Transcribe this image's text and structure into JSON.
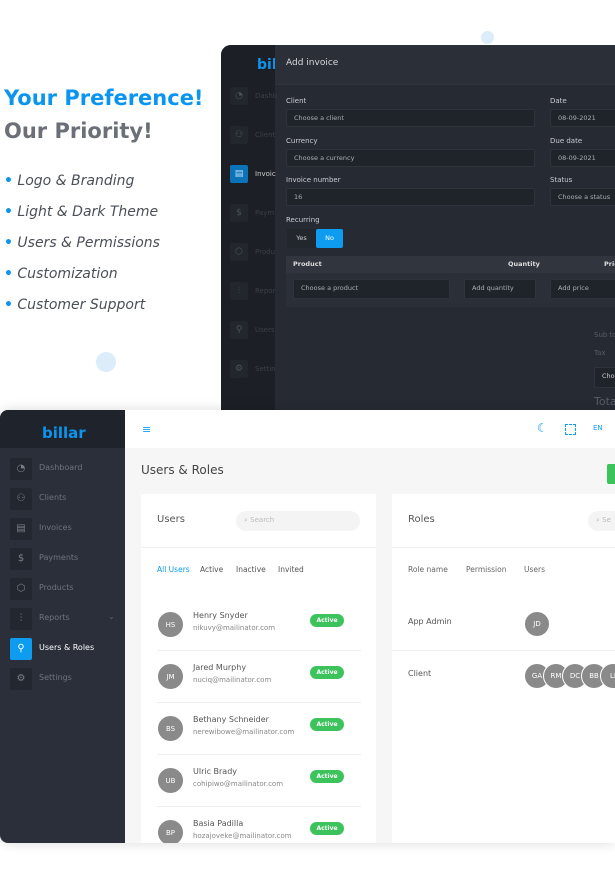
{
  "hero": {
    "line1": "Your Preference!",
    "line2": "Our Priority!",
    "features": [
      "Logo & Branding",
      "Light & Dark Theme",
      "Users & Permissions",
      "Customization",
      "Customer Support"
    ]
  },
  "dark_app": {
    "logo": "bil",
    "title": "Add invoice",
    "sidebar": [
      "Dashb",
      "Client",
      "Invoic",
      "Paym",
      "Produ",
      "Repor",
      "Users",
      "Settin"
    ],
    "client_label": "Client",
    "client_ph": "Choose a client",
    "date_label": "Date",
    "date": "08-09-2021",
    "currency_label": "Currency",
    "currency_ph": "Choose a currency",
    "due_label": "Due date",
    "due": "08-09-2021",
    "number_label": "Invoice number",
    "number": "16",
    "status_label": "Status",
    "status_ph": "Choose a status",
    "recurring_label": "Recurring",
    "yes": "Yes",
    "no": "No",
    "col_product": "Product",
    "col_quantity": "Quantity",
    "col_price": "Pric",
    "product_ph": "Choose a product",
    "qty_ph": "Add quantity",
    "price_ph": "Add price",
    "subtotal": "Sub to",
    "tax": "Tax",
    "choose": "Cho",
    "total": "Tota"
  },
  "app": {
    "logo": "billar",
    "language": "EN",
    "page_title": "Users & Roles",
    "sidebar": [
      {
        "label": "Dashboard",
        "icon": "pie-chart-icon"
      },
      {
        "label": "Clients",
        "icon": "users-icon"
      },
      {
        "label": "Invoices",
        "icon": "document-icon"
      },
      {
        "label": "Payments",
        "icon": "dollar-icon"
      },
      {
        "label": "Products",
        "icon": "box-icon"
      },
      {
        "label": "Reports",
        "icon": "bar-chart-icon"
      },
      {
        "label": "Users & Roles",
        "icon": "user-check-icon"
      },
      {
        "label": "Settings",
        "icon": "gear-icon"
      }
    ],
    "users": {
      "title": "Users",
      "search_ph": "Search",
      "tabs": [
        "All Users",
        "Active",
        "Inactive",
        "Invited"
      ],
      "rows": [
        {
          "initials": "HS",
          "name": "Henry Snyder",
          "email": "nikuvy@mailinator.com",
          "status": "Active"
        },
        {
          "initials": "JM",
          "name": "Jared Murphy",
          "email": "nuciq@mailinator.com",
          "status": "Active"
        },
        {
          "initials": "BS",
          "name": "Bethany Schneider",
          "email": "nerewibowe@mailinator.com",
          "status": "Active"
        },
        {
          "initials": "UB",
          "name": "Ulric Brady",
          "email": "cohipiwo@mailinator.com",
          "status": "Active"
        },
        {
          "initials": "BP",
          "name": "Basia Padilla",
          "email": "hozajoveke@mailinator.com",
          "status": "Active"
        }
      ]
    },
    "roles": {
      "title": "Roles",
      "search_ph": "Se",
      "headers": [
        "Role name",
        "Permission",
        "Users"
      ],
      "rows": [
        {
          "name": "App Admin",
          "users": [
            "JD"
          ]
        },
        {
          "name": "Client",
          "users": [
            "GA",
            "RM",
            "DC",
            "BB",
            "LI"
          ]
        }
      ]
    },
    "colors": {
      "accent": "#0d9cf0",
      "success": "#3cc35b",
      "sidebar": "#2a2f3a"
    }
  }
}
